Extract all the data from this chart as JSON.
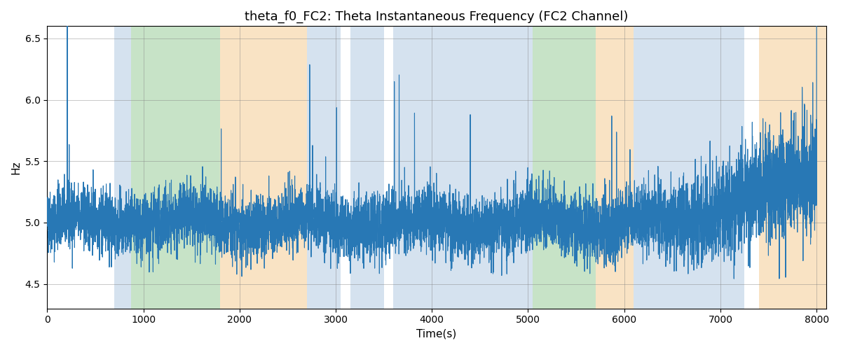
{
  "title": "theta_f0_FC2: Theta Instantaneous Frequency (FC2 Channel)",
  "xlabel": "Time(s)",
  "ylabel": "Hz",
  "xlim": [
    0,
    8100
  ],
  "ylim": [
    4.3,
    6.6
  ],
  "line_color": "#2878b5",
  "line_width": 0.8,
  "background_color": "#ffffff",
  "seed": 42,
  "n_points": 8000,
  "colored_bands": [
    {
      "xmin": 700,
      "xmax": 870,
      "color": "#adc6e0",
      "alpha": 0.5
    },
    {
      "xmin": 870,
      "xmax": 1800,
      "color": "#90c990",
      "alpha": 0.5
    },
    {
      "xmin": 1800,
      "xmax": 2700,
      "color": "#f5c98a",
      "alpha": 0.5
    },
    {
      "xmin": 2700,
      "xmax": 3050,
      "color": "#adc6e0",
      "alpha": 0.5
    },
    {
      "xmin": 3150,
      "xmax": 3500,
      "color": "#adc6e0",
      "alpha": 0.5
    },
    {
      "xmin": 3600,
      "xmax": 4850,
      "color": "#adc6e0",
      "alpha": 0.5
    },
    {
      "xmin": 4850,
      "xmax": 5050,
      "color": "#adc6e0",
      "alpha": 0.5
    },
    {
      "xmin": 5050,
      "xmax": 5700,
      "color": "#90c990",
      "alpha": 0.5
    },
    {
      "xmin": 5700,
      "xmax": 6100,
      "color": "#f5c98a",
      "alpha": 0.5
    },
    {
      "xmin": 6100,
      "xmax": 7250,
      "color": "#adc6e0",
      "alpha": 0.5
    },
    {
      "xmin": 7400,
      "xmax": 8100,
      "color": "#f5c98a",
      "alpha": 0.5
    }
  ],
  "figsize": [
    12.0,
    5.0
  ],
  "dpi": 100
}
